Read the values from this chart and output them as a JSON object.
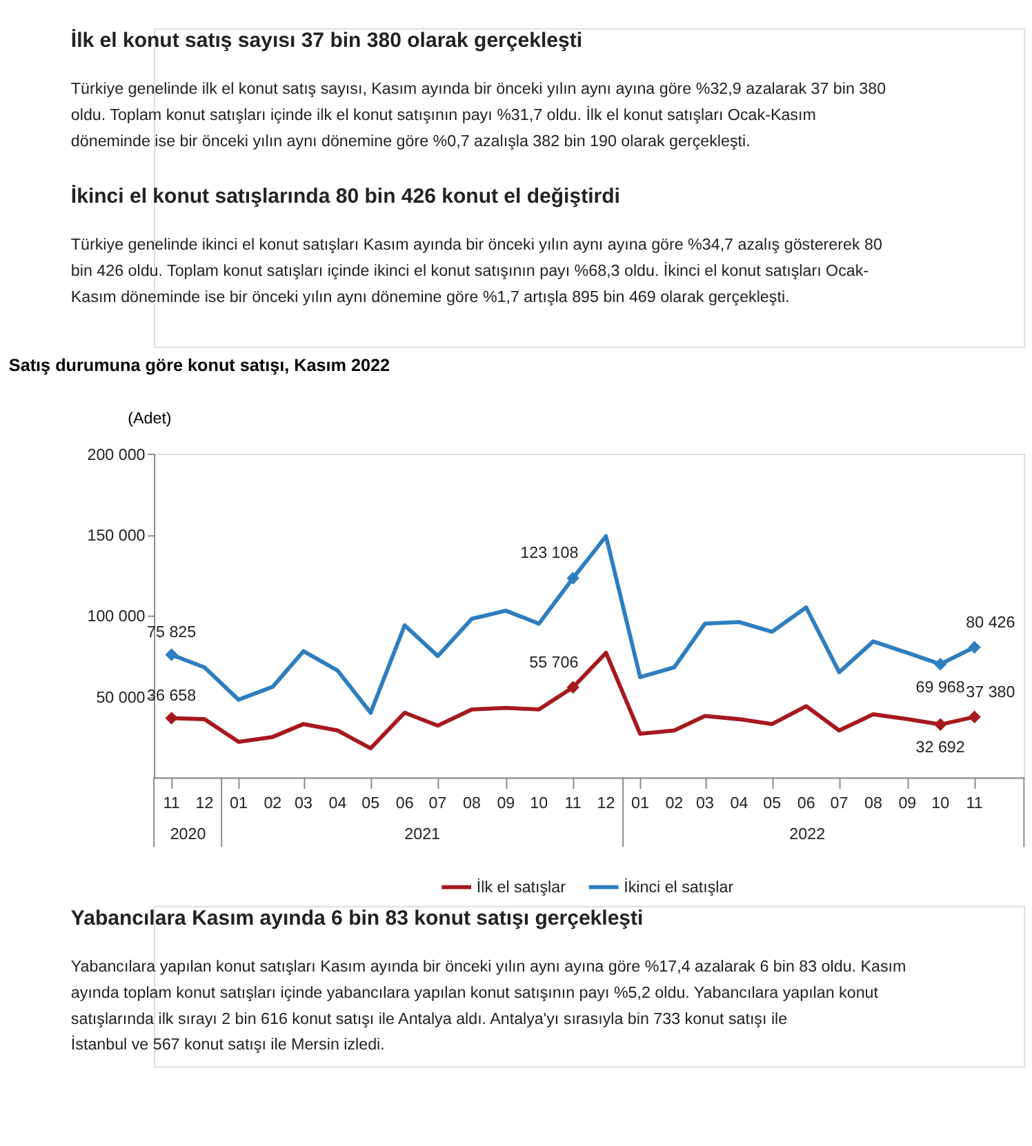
{
  "chart_data": {
    "type": "line",
    "title": "Satış durumuna göre konut satışı, Kasım 2022",
    "ylabel": "(Adet)",
    "x": [
      "2020-11",
      "2020-12",
      "2021-01",
      "2021-02",
      "2021-03",
      "2021-04",
      "2021-05",
      "2021-06",
      "2021-07",
      "2021-08",
      "2021-09",
      "2021-10",
      "2021-11",
      "2021-12",
      "2022-01",
      "2022-02",
      "2022-03",
      "2022-04",
      "2022-05",
      "2022-06",
      "2022-07",
      "2022-08",
      "2022-09",
      "2022-10",
      "2022-11"
    ],
    "xlim": [
      "2020-10-16",
      "2022-12-16"
    ],
    "xticks": [
      {
        "value": "2020-11",
        "label": "11"
      },
      {
        "value": "2020-12",
        "label": "12"
      },
      {
        "value": "2021-01",
        "label": "01"
      },
      {
        "value": "2021-02",
        "label": "02"
      },
      {
        "value": "2021-03",
        "label": "03"
      },
      {
        "value": "2021-04",
        "label": "04"
      },
      {
        "value": "2021-05",
        "label": "05"
      },
      {
        "value": "2021-06",
        "label": "06"
      },
      {
        "value": "2021-07",
        "label": "07"
      },
      {
        "value": "2021-08",
        "label": "08"
      },
      {
        "value": "2021-09",
        "label": "09"
      },
      {
        "value": "2021-10",
        "label": "10"
      },
      {
        "value": "2021-11",
        "label": "11"
      },
      {
        "value": "2021-12",
        "label": "12"
      },
      {
        "value": "2022-01",
        "label": "01"
      },
      {
        "value": "2022-02",
        "label": "02"
      },
      {
        "value": "2022-03",
        "label": "03"
      },
      {
        "value": "2022-04",
        "label": "04"
      },
      {
        "value": "2022-05",
        "label": "05"
      },
      {
        "value": "2022-06",
        "label": "06"
      },
      {
        "value": "2022-07",
        "label": "07"
      },
      {
        "value": "2022-08",
        "label": "08"
      },
      {
        "value": "2022-09",
        "label": "09"
      },
      {
        "value": "2022-10",
        "label": "10"
      },
      {
        "value": "2022-11",
        "label": "11"
      }
    ],
    "ylim": [
      0,
      200000
    ],
    "yticks": [
      {
        "value": 50000,
        "label": "50 000"
      },
      {
        "value": 100000,
        "label": "100 000"
      },
      {
        "value": 150000,
        "label": "150 000"
      },
      {
        "value": 200000,
        "label": "200 000"
      }
    ],
    "series": [
      {
        "name": "İlk el satışlar",
        "color": "#a6191e",
        "values": [
          36658,
          36000,
          22000,
          25000,
          33000,
          29000,
          18000,
          40000,
          32000,
          42000,
          43000,
          42000,
          55706,
          77000,
          27000,
          29000,
          38000,
          36000,
          33000,
          44000,
          29000,
          39000,
          36000,
          32692,
          37380
        ],
        "value_labels": [
          "36 658",
          null,
          null,
          null,
          null,
          null,
          null,
          null,
          null,
          null,
          null,
          null,
          "55 706",
          null,
          null,
          null,
          null,
          null,
          null,
          null,
          null,
          null,
          null,
          "32 692",
          "37 380"
        ]
      },
      {
        "name": "İkinci el satışlar",
        "color": "#2e7ebf",
        "values": [
          75825,
          68000,
          48000,
          56000,
          78000,
          66000,
          40000,
          94000,
          75000,
          98000,
          103000,
          95000,
          123108,
          149000,
          62000,
          68000,
          95000,
          96000,
          90000,
          105000,
          65000,
          84000,
          77000,
          69968,
          80426
        ],
        "value_labels": [
          "75 825",
          null,
          null,
          null,
          null,
          null,
          null,
          null,
          null,
          null,
          null,
          null,
          "123 108",
          null,
          null,
          null,
          null,
          null,
          null,
          null,
          null,
          null,
          null,
          "69 968",
          "80 426"
        ]
      }
    ],
    "grid": false,
    "legend": "bottom",
    "annotations": [
      "İlk el konut satış sayısı 37 bin 380 olarak gerçekleşti",
      "Türkiye genelinde ilk el konut satış sayısı, Kasım ayında bir önceki yılın aynı ayına göre %32,9 azalarak 37 bin 380 oldu. Toplam konut satışları içinde ilk el konut satışının payı %31,7 oldu. İlk el konut satışları Ocak-Kasım döneminde ise bir önceki yılın aynı dönemine göre %0,7 azalışla 382 bin 190 olarak gerçekleşti.",
      "İkinci el konut satışlarında 80 bin 426 konut el değiştirdi",
      "Türkiye genelinde ikinci el konut satışları Kasım ayında bir önceki yılın aynı ayına göre %34,7 azalış göstererek 80 bin 426 oldu. Toplam konut satışları içinde ikinci el konut satışının payı %68,3 oldu. İkinci el konut satışları Ocak-Kasım döneminde ise bir önceki yılın aynı dönemine göre %1,7 artışla 895 bin 469 olarak gerçekleşti.",
      "2020",
      "2021",
      "2022",
      "Yabancılara Kasım ayında 6 bin 83 konut satışı gerçekleşti",
      "Yabancılara yapılan konut satışları Kasım ayında bir önceki yılın aynı ayına göre %17,4 azalarak 6 bin 83 oldu. Kasım ayında toplam konut satışları içinde yabancılara yapılan konut satışının payı %5,2 oldu. Yabancılara yapılan konut satışlarında ilk sırayı 2 bin 616 konut satışı ile Antalya aldı. Antalya'yı sırasıyla bin 733 konut satışı ile İstanbul ve 567 konut satışı ile Mersin izledi."
    ]
  }
}
